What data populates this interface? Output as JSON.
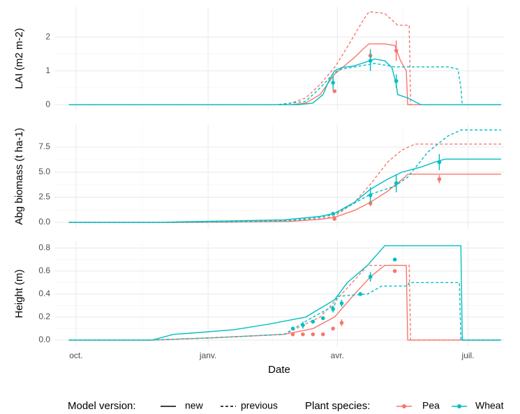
{
  "chart_data": [
    {
      "type": "line",
      "y_label": "LAI (m2 m-2)",
      "xlim": [
        -15,
        298
      ],
      "xticks": [
        {
          "value": 0,
          "label": "oct."
        },
        {
          "value": 92,
          "label": "janv."
        },
        {
          "value": 182,
          "label": "avr."
        },
        {
          "value": 273,
          "label": "juil."
        }
      ],
      "ylim": [
        -0.16,
        2.89
      ],
      "yticks": [
        0,
        1,
        2
      ],
      "grid": true,
      "series": [
        {
          "name": "Pea",
          "model": "new",
          "color": "#F8766D",
          "x": [
            -5,
            150,
            160,
            170,
            180,
            187,
            194,
            200,
            204,
            215,
            222,
            226,
            230,
            231,
            296
          ],
          "values": [
            0,
            0,
            0.05,
            0.3,
            0.9,
            1.15,
            1.4,
            1.65,
            1.8,
            1.8,
            1.75,
            1.3,
            1.0,
            0,
            0
          ]
        },
        {
          "name": "Pea",
          "model": "previous",
          "color": "#F8766D",
          "x": [
            -5,
            140,
            150,
            160,
            170,
            180,
            186,
            193,
            200,
            204,
            215,
            224,
            232,
            233,
            296
          ],
          "values": [
            0,
            0,
            0.05,
            0.2,
            0.6,
            1.1,
            1.5,
            2.0,
            2.5,
            2.75,
            2.7,
            2.35,
            2.35,
            0,
            0
          ]
        },
        {
          "name": "Wheat",
          "model": "new",
          "color": "#00BFC4",
          "x": [
            -5,
            155,
            165,
            172,
            176,
            180,
            185,
            194,
            208,
            215,
            220,
            223,
            224,
            231,
            240,
            296
          ],
          "values": [
            0,
            0,
            0.05,
            0.3,
            0.7,
            1.0,
            1.1,
            1.15,
            1.35,
            1.3,
            1.1,
            0.6,
            0.3,
            0.2,
            0,
            0
          ]
        },
        {
          "name": "Wheat",
          "model": "previous",
          "color": "#00BFC4",
          "x": [
            -5,
            140,
            160,
            170,
            180,
            185,
            208,
            222,
            259,
            266,
            268,
            269,
            296
          ],
          "values": [
            0,
            0,
            0.1,
            0.5,
            0.95,
            1.05,
            1.22,
            1.12,
            1.12,
            1.05,
            0.5,
            0,
            0
          ]
        }
      ],
      "observations": [
        {
          "name": "Pea",
          "color": "#F8766D",
          "x": [
            180,
            205,
            223
          ],
          "values": [
            0.4,
            1.45,
            1.6
          ],
          "errors": [
            null,
            0.2,
            0.3
          ]
        },
        {
          "name": "Wheat",
          "color": "#00BFC4",
          "x": [
            179,
            205,
            223
          ],
          "values": [
            0.65,
            1.3,
            0.7
          ],
          "errors": [
            0.2,
            0.3,
            0.2
          ]
        }
      ]
    },
    {
      "type": "line",
      "y_label": "Abg biomass (t ha-1)",
      "xlim": [
        -15,
        298
      ],
      "xticks": [
        {
          "value": 0,
          "label": "oct."
        },
        {
          "value": 92,
          "label": "janv."
        },
        {
          "value": 182,
          "label": "avr."
        },
        {
          "value": 273,
          "label": "juil."
        }
      ],
      "ylim": [
        -0.62,
        9.79
      ],
      "yticks": [
        {
          "value": 0,
          "label": "0.0"
        },
        {
          "value": 2.5,
          "label": "2.5"
        },
        {
          "value": 5,
          "label": "5.0"
        },
        {
          "value": 7.5,
          "label": "7.5"
        }
      ],
      "grid": true,
      "series": [
        {
          "name": "Pea",
          "model": "new",
          "color": "#F8766D",
          "x": [
            -5,
            60,
            100,
            150,
            170,
            180,
            194,
            205,
            217,
            229,
            231,
            296
          ],
          "values": [
            0,
            0,
            0.02,
            0.1,
            0.3,
            0.5,
            1.2,
            2.0,
            3.1,
            4.5,
            4.8,
            4.8
          ]
        },
        {
          "name": "Pea",
          "model": "previous",
          "color": "#F8766D",
          "x": [
            -5,
            60,
            100,
            150,
            170,
            180,
            194,
            205,
            217,
            227,
            236,
            296
          ],
          "values": [
            0,
            0,
            0.02,
            0.15,
            0.35,
            0.6,
            2.0,
            3.8,
            6.0,
            7.2,
            7.8,
            7.8
          ]
        },
        {
          "name": "Wheat",
          "model": "new",
          "color": "#00BFC4",
          "x": [
            -5,
            60,
            71,
            145,
            170,
            180,
            194,
            205,
            217,
            227,
            240,
            250,
            257,
            296
          ],
          "values": [
            0,
            0,
            0.05,
            0.25,
            0.6,
            0.9,
            2.0,
            3.3,
            4.3,
            5.0,
            5.5,
            6.0,
            6.3,
            6.3
          ]
        },
        {
          "name": "Wheat",
          "model": "previous",
          "color": "#00BFC4",
          "x": [
            -5,
            60,
            100,
            150,
            170,
            180,
            205,
            222,
            231,
            245,
            259,
            268,
            296
          ],
          "values": [
            0,
            0,
            0.03,
            0.2,
            0.5,
            0.8,
            2.8,
            3.6,
            4.5,
            7.0,
            8.6,
            9.2,
            9.2
          ]
        }
      ],
      "observations": [
        {
          "name": "Pea",
          "color": "#F8766D",
          "x": [
            180,
            205,
            223,
            253
          ],
          "values": [
            0.35,
            1.9,
            3.9,
            4.3
          ],
          "errors": [
            null,
            0.3,
            0.5,
            0.4
          ]
        },
        {
          "name": "Wheat",
          "color": "#00BFC4",
          "x": [
            179,
            205,
            223,
            253
          ],
          "values": [
            0.85,
            2.7,
            3.9,
            6.0
          ],
          "errors": [
            null,
            0.8,
            0.9,
            0.8
          ]
        }
      ]
    },
    {
      "type": "line",
      "y_label": "Height (m)",
      "x_label": "Date",
      "xlim": [
        -15,
        298
      ],
      "xticks": [
        {
          "value": 0,
          "label": "oct."
        },
        {
          "value": 92,
          "label": "janv."
        },
        {
          "value": 182,
          "label": "avr."
        },
        {
          "value": 273,
          "label": "juil."
        }
      ],
      "ylim": [
        -0.055,
        0.86
      ],
      "yticks": [
        {
          "value": 0,
          "label": "0.0"
        },
        {
          "value": 0.2,
          "label": "0.2"
        },
        {
          "value": 0.4,
          "label": "0.4"
        },
        {
          "value": 0.6,
          "label": "0.6"
        },
        {
          "value": 0.8,
          "label": "0.8"
        }
      ],
      "grid": true,
      "series": [
        {
          "name": "Pea",
          "model": "new",
          "color": "#F8766D",
          "x": [
            -5,
            53,
            96,
            145,
            165,
            180,
            194,
            205,
            215,
            230,
            231,
            296
          ],
          "values": [
            0,
            0,
            0.02,
            0.05,
            0.1,
            0.2,
            0.4,
            0.55,
            0.65,
            0.65,
            0,
            0
          ]
        },
        {
          "name": "Pea",
          "model": "previous",
          "color": "#F8766D",
          "x": [
            -5,
            53,
            96,
            145,
            170,
            185,
            196,
            203,
            232,
            233,
            296
          ],
          "values": [
            0,
            0,
            0.02,
            0.05,
            0.2,
            0.4,
            0.55,
            0.65,
            0.65,
            0,
            0
          ]
        },
        {
          "name": "Wheat",
          "model": "new",
          "color": "#00BFC4",
          "x": [
            -5,
            53,
            68,
            80,
            110,
            135,
            160,
            180,
            189,
            203,
            215,
            268,
            269,
            296
          ],
          "values": [
            0,
            0,
            0.05,
            0.06,
            0.09,
            0.14,
            0.2,
            0.35,
            0.5,
            0.65,
            0.82,
            0.82,
            0,
            0
          ]
        },
        {
          "name": "Wheat",
          "model": "previous",
          "color": "#00BFC4",
          "x": [
            -5,
            53,
            96,
            145,
            165,
            180,
            182,
            203,
            213,
            231,
            232,
            267,
            268,
            296
          ],
          "values": [
            0,
            0,
            0.02,
            0.05,
            0.2,
            0.3,
            0.38,
            0.4,
            0.47,
            0.47,
            0.5,
            0.5,
            0,
            0
          ]
        }
      ],
      "observations": [
        {
          "name": "Pea",
          "color": "#F8766D",
          "x": [
            151,
            158,
            165,
            172,
            179,
            185,
            205,
            222
          ],
          "values": [
            0.05,
            0.05,
            0.05,
            0.05,
            0.1,
            0.15,
            0.55,
            0.6
          ],
          "errors": [
            null,
            null,
            null,
            null,
            null,
            0.03,
            0.04,
            null
          ]
        },
        {
          "name": "Wheat",
          "color": "#00BFC4",
          "x": [
            151,
            158,
            165,
            172,
            179,
            185,
            198,
            205,
            222
          ],
          "values": [
            0.1,
            0.13,
            0.16,
            0.19,
            0.27,
            0.32,
            0.4,
            0.55,
            0.7
          ],
          "errors": [
            null,
            0.03,
            null,
            null,
            0.03,
            0.03,
            null,
            0.04,
            null
          ]
        }
      ]
    }
  ],
  "legend": {
    "model_title": "Model version:",
    "models": [
      {
        "label": "new",
        "dash": "solid"
      },
      {
        "label": "previous",
        "dash": "dashed"
      }
    ],
    "species_title": "Plant species:",
    "species": [
      {
        "label": "Pea",
        "color": "#F8766D"
      },
      {
        "label": "Wheat",
        "color": "#00BFC4"
      }
    ]
  }
}
